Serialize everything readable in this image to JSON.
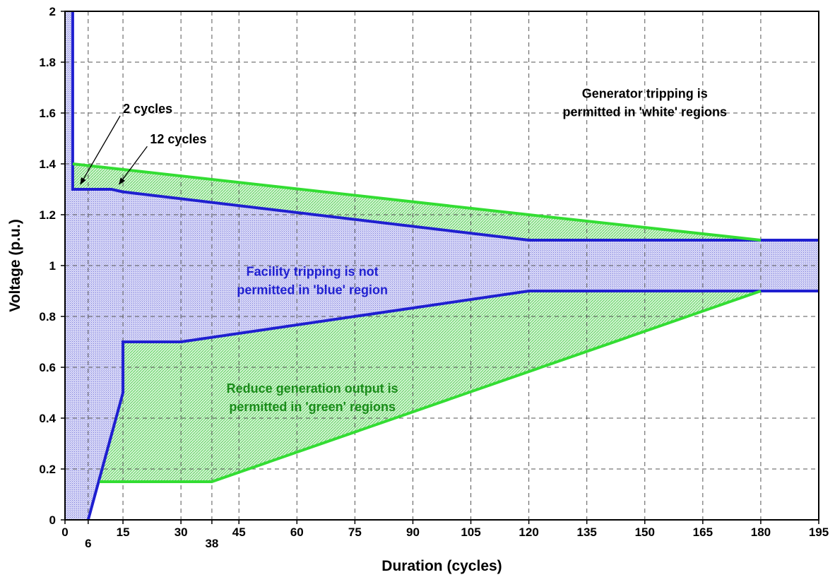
{
  "chart_data": {
    "type": "line",
    "xlabel": "Duration (cycles)",
    "ylabel": "Voltage (p.u.)",
    "xlim": [
      0,
      195
    ],
    "ylim": [
      0,
      2
    ],
    "x_ticks": [
      0,
      6,
      15,
      30,
      38,
      45,
      60,
      75,
      90,
      105,
      120,
      135,
      150,
      165,
      180,
      195
    ],
    "x_tick_labels": [
      "0",
      "6",
      "15",
      "30",
      "38",
      "45",
      "60",
      "75",
      "90",
      "105",
      "120",
      "135",
      "150",
      "165",
      "180",
      "195"
    ],
    "y_ticks": [
      0,
      0.2,
      0.4,
      0.6,
      0.8,
      1,
      1.2,
      1.4,
      1.6,
      1.8,
      2
    ],
    "y_tick_labels": [
      "0",
      "0.2",
      "0.4",
      "0.6",
      "0.8",
      "1",
      "1.2",
      "1.4",
      "1.6",
      "1.8",
      "2"
    ],
    "grid": true,
    "colors": {
      "blue": "#1f1fd0",
      "green": "#33dd33",
      "blue_fill": "#c9c9f2",
      "green_fill": "#c6f0c6"
    },
    "series": [
      {
        "color": "blue",
        "points": [
          [
            2,
            2
          ],
          [
            2,
            1.3
          ],
          [
            12,
            1.3
          ],
          [
            15,
            1.29
          ],
          [
            120,
            1.1
          ],
          [
            195,
            1.1
          ]
        ]
      },
      {
        "color": "blue",
        "points": [
          [
            6,
            0
          ],
          [
            15,
            0.5
          ],
          [
            15,
            0.7
          ],
          [
            30,
            0.7
          ],
          [
            120,
            0.9
          ],
          [
            195,
            0.9
          ]
        ]
      },
      {
        "color": "green",
        "points": [
          [
            2,
            1.4
          ],
          [
            120,
            1.2
          ],
          [
            180,
            1.1
          ]
        ]
      },
      {
        "color": "green",
        "points": [
          [
            9,
            0.15
          ],
          [
            38,
            0.15
          ],
          [
            180,
            0.9
          ]
        ]
      }
    ],
    "regions": [
      {
        "color": "blue",
        "points": [
          [
            0,
            0
          ],
          [
            0,
            2
          ],
          [
            2,
            2
          ],
          [
            2,
            1.3
          ],
          [
            12,
            1.3
          ],
          [
            15,
            1.29
          ],
          [
            120,
            1.1
          ],
          [
            195,
            1.1
          ],
          [
            195,
            0.9
          ],
          [
            120,
            0.9
          ],
          [
            30,
            0.7
          ],
          [
            15,
            0.7
          ],
          [
            15,
            0.5
          ],
          [
            6,
            0
          ]
        ]
      },
      {
        "color": "green",
        "points": [
          [
            2,
            1.4
          ],
          [
            120,
            1.2
          ],
          [
            180,
            1.1
          ],
          [
            120,
            1.1
          ],
          [
            15,
            1.29
          ],
          [
            12,
            1.3
          ],
          [
            2,
            1.3
          ]
        ]
      },
      {
        "color": "green",
        "points": [
          [
            15,
            0.7
          ],
          [
            30,
            0.7
          ],
          [
            120,
            0.9
          ],
          [
            180,
            0.9
          ],
          [
            38,
            0.15
          ],
          [
            9,
            0.15
          ],
          [
            15,
            0.5
          ]
        ]
      }
    ],
    "annotations": [
      {
        "id": "ann-2cycles",
        "lines": [
          "2 cycles"
        ],
        "color": "#000000",
        "x": 15,
        "y": 1.6,
        "arrow_to": [
          4,
          1.32
        ]
      },
      {
        "id": "ann-12cycles",
        "lines": [
          "12 cycles"
        ],
        "color": "#000000",
        "x": 22,
        "y": 1.48,
        "arrow_to": [
          14,
          1.32
        ]
      },
      {
        "id": "ann-white",
        "lines": [
          "Generator tripping is",
          "permitted in 'white' regions"
        ],
        "color": "#000000",
        "x": 150,
        "y": 1.66
      },
      {
        "id": "ann-blue",
        "lines": [
          "Facility tripping is not",
          "permitted in 'blue' region"
        ],
        "color": "#1f1fd0",
        "x": 64,
        "y": 0.96
      },
      {
        "id": "ann-green",
        "lines": [
          "Reduce generation output is",
          "permitted in 'green' regions"
        ],
        "color": "#1a8c1a",
        "x": 64,
        "y": 0.5
      }
    ]
  }
}
